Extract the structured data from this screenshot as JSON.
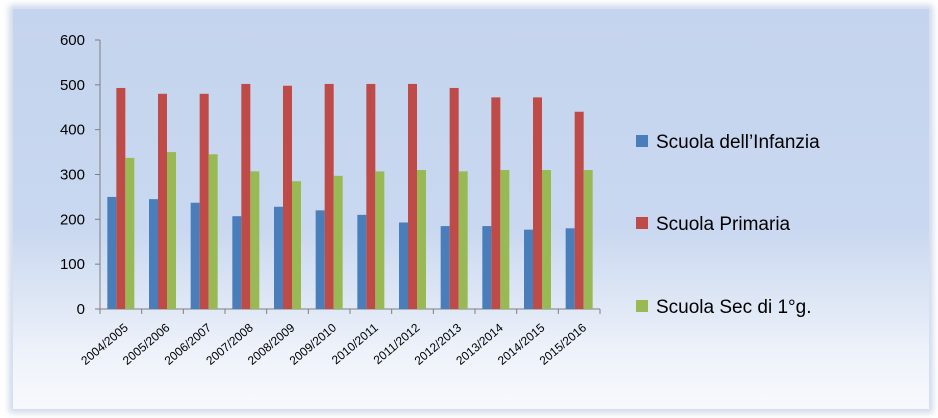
{
  "chart_data": {
    "type": "bar",
    "categories": [
      "2004/2005",
      "2005/2006",
      "2006/2007",
      "2007/2008",
      "2008/2009",
      "2009/2010",
      "2010/2011",
      "2011/2012",
      "2012/2013",
      "2013/2014",
      "2014/2015",
      "2015/2016"
    ],
    "series": [
      {
        "name": "Scuola dell’Infanzia",
        "color": "#4a7ebb",
        "values": [
          250,
          245,
          237,
          207,
          228,
          220,
          210,
          193,
          185,
          185,
          177,
          180
        ]
      },
      {
        "name": "Scuola Primaria",
        "color": "#be4b48",
        "values": [
          493,
          480,
          480,
          502,
          498,
          502,
          502,
          502,
          493,
          472,
          472,
          440
        ]
      },
      {
        "name": "Scuola Sec di 1°g.",
        "color": "#98b954",
        "values": [
          337,
          350,
          345,
          307,
          285,
          297,
          307,
          310,
          307,
          310,
          310,
          310
        ]
      }
    ],
    "ylim": [
      0,
      600
    ],
    "yticks": [
      0,
      100,
      200,
      300,
      400,
      500,
      600
    ],
    "title": "",
    "xlabel": "",
    "ylabel": "",
    "grid": false,
    "legend_position": "right"
  }
}
